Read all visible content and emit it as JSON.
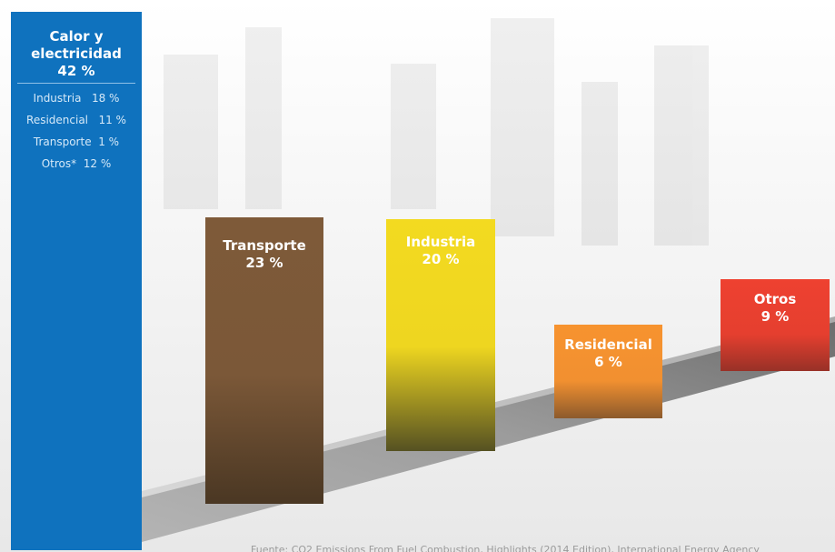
{
  "chart_data": {
    "type": "bar",
    "unit": "%",
    "categories": [
      "Calor y electricidad",
      "Transporte",
      "Industria",
      "Residencial",
      "Otros"
    ],
    "values": [
      42,
      23,
      20,
      6,
      9
    ],
    "value_labels": [
      "42 %",
      "23 %",
      "20 %",
      "6 %",
      "9 %"
    ],
    "breakdown": {
      "of": "Calor y electricidad",
      "items": [
        {
          "label": "Industria",
          "value": 18,
          "text": "18 %"
        },
        {
          "label": "Residencial",
          "value": 11,
          "text": "11 %"
        },
        {
          "label": "Transporte",
          "value": 1,
          "text": "1 %"
        },
        {
          "label": "Otros*",
          "value": 12,
          "text": "12 %"
        }
      ]
    },
    "colors": {
      "Calor y electricidad": "#0f72be",
      "Transporte": "#7e5a39",
      "Industria": "#f3da20",
      "Residencial": "#f7932f",
      "Otros": "#ee4130"
    }
  },
  "labels": {
    "calor_title_1": "Calor y",
    "calor_title_2": "electricidad",
    "calor_value": "42 %",
    "transporte": "Transporte",
    "transporte_value": "23 %",
    "industria": "Industria",
    "industria_value": "20 %",
    "residencial": "Residencial",
    "residencial_value": "6 %",
    "otros": "Otros",
    "otros_value": "9 %",
    "sub_industria": "Industria",
    "sub_industria_value": "18 %",
    "sub_residencial": "Residencial",
    "sub_residencial_value": "11 %",
    "sub_transporte": "Transporte",
    "sub_transporte_value": "1 %",
    "sub_otros": "Otros*",
    "sub_otros_value": "12 %"
  },
  "source": "Fuente: CO2 Emissions From Fuel Combustion, Highlights (2014 Edition), International Energy Agency"
}
